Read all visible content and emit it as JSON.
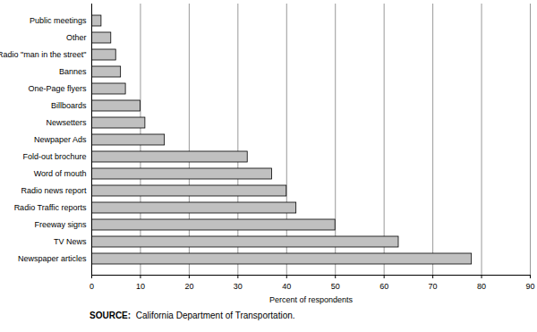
{
  "chart_data": {
    "type": "bar",
    "orientation": "horizontal",
    "categories": [
      "Public meetings",
      "Other",
      "Radio \"man in the street\"",
      "Bannes",
      "One-Page flyers",
      "Billboards",
      "Newsetters",
      "Newpaper Ads",
      "Fold-out brochure",
      "Word of mouth",
      "Radio news report",
      "Radio Traffic reports",
      "Freeway signs",
      "TV News",
      "Newspaper articles"
    ],
    "values": [
      2,
      4,
      5,
      6,
      7,
      10,
      11,
      15,
      32,
      37,
      40,
      42,
      50,
      63,
      78
    ],
    "color": "#c0c0c0",
    "x_label": "Percent of respondents",
    "xlim": [
      0,
      90
    ],
    "xticks": [
      0,
      10,
      20,
      30,
      40,
      50,
      60,
      70,
      80,
      90
    ],
    "grid": true,
    "caption": "SOURCE:  California Department of Transportation."
  }
}
